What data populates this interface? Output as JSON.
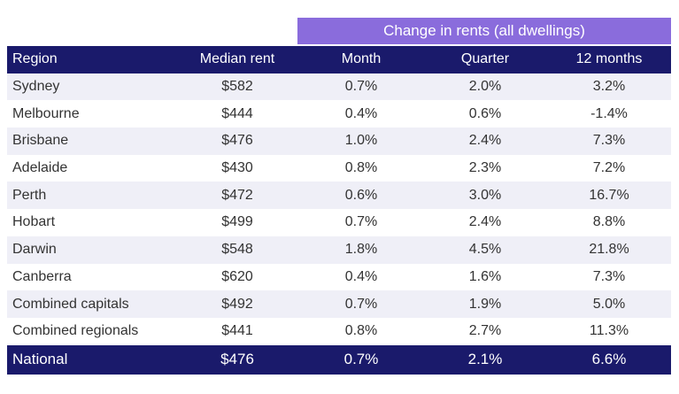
{
  "group_header": "Change in rents  (all dwellings)",
  "columns": [
    "Region",
    "Median rent",
    "Month",
    "Quarter",
    "12 months"
  ],
  "rows": [
    {
      "region": "Sydney",
      "median": "$582",
      "month": "0.7%",
      "quarter": "2.0%",
      "twelve": "3.2%"
    },
    {
      "region": "Melbourne",
      "median": "$444",
      "month": "0.4%",
      "quarter": "0.6%",
      "twelve": "-1.4%"
    },
    {
      "region": "Brisbane",
      "median": "$476",
      "month": "1.0%",
      "quarter": "2.4%",
      "twelve": "7.3%"
    },
    {
      "region": "Adelaide",
      "median": "$430",
      "month": "0.8%",
      "quarter": "2.3%",
      "twelve": "7.2%"
    },
    {
      "region": "Perth",
      "median": "$472",
      "month": "0.6%",
      "quarter": "3.0%",
      "twelve": "16.7%"
    },
    {
      "region": "Hobart",
      "median": "$499",
      "month": "0.7%",
      "quarter": "2.4%",
      "twelve": "8.8%"
    },
    {
      "region": "Darwin",
      "median": "$548",
      "month": "1.8%",
      "quarter": "4.5%",
      "twelve": "21.8%"
    },
    {
      "region": "Canberra",
      "median": "$620",
      "month": "0.4%",
      "quarter": "1.6%",
      "twelve": "7.3%"
    },
    {
      "region": "Combined capitals",
      "median": "$492",
      "month": "0.7%",
      "quarter": "1.9%",
      "twelve": "5.0%"
    },
    {
      "region": "Combined regionals",
      "median": "$441",
      "month": "0.8%",
      "quarter": "2.7%",
      "twelve": "11.3%"
    }
  ],
  "national": {
    "region": "National",
    "median": "$476",
    "month": "0.7%",
    "quarter": "2.1%",
    "twelve": "6.6%"
  },
  "colors": {
    "header_bg": "#1a1a6b",
    "group_header_bg": "#8a6cdc",
    "stripe_bg": "#efeff7"
  }
}
